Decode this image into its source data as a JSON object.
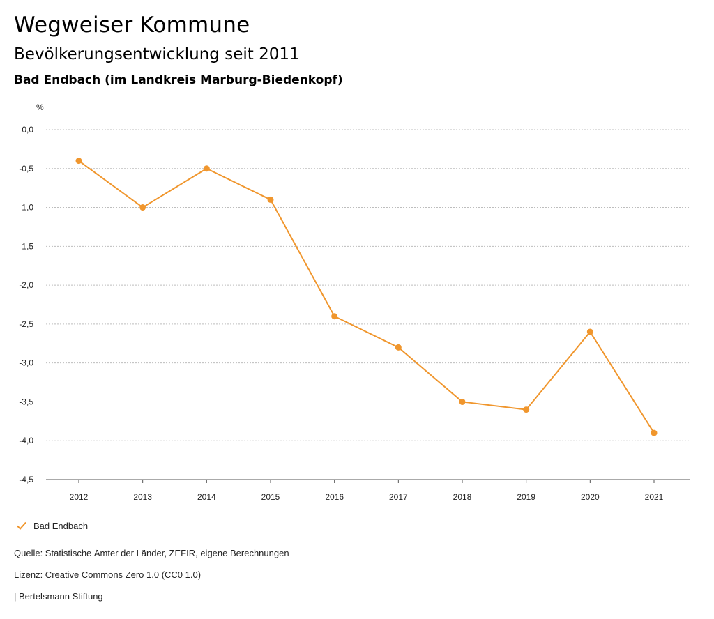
{
  "header": {
    "title": "Wegweiser Kommune",
    "subtitle": "Bevölkerungsentwicklung seit 2011",
    "region": "Bad Endbach (im Landkreis Marburg-Biedenkopf)"
  },
  "chart_data": {
    "type": "line",
    "title": "Bevölkerungsentwicklung seit 2011",
    "ylabel": "%",
    "xlabel": "",
    "ylim": [
      -4.5,
      0.0
    ],
    "yticks": [
      0.0,
      -0.5,
      -1.0,
      -1.5,
      -2.0,
      -2.5,
      -3.0,
      -3.5,
      -4.0,
      -4.5
    ],
    "ytick_labels": [
      "0,0",
      "-0,5",
      "-1,0",
      "-1,5",
      "-2,0",
      "-2,5",
      "-3,0",
      "-3,5",
      "-4,0",
      "-4,5"
    ],
    "categories": [
      "2012",
      "2013",
      "2014",
      "2015",
      "2016",
      "2017",
      "2018",
      "2019",
      "2020",
      "2021"
    ],
    "series": [
      {
        "name": "Bad Endbach",
        "color": "#f0962d",
        "values": [
          -0.4,
          -1.0,
          -0.5,
          -0.9,
          -2.4,
          -2.8,
          -3.5,
          -3.6,
          -2.6,
          -3.9
        ]
      }
    ],
    "grid": true,
    "legend": "bottom-left"
  },
  "legend": {
    "label": "Bad Endbach",
    "icon": "check-icon"
  },
  "footer": {
    "source": "Quelle: Statistische Ämter der Länder, ZEFIR, eigene Berechnungen",
    "license": "Lizenz: Creative Commons Zero 1.0 (CC0 1.0)",
    "brand": "| Bertelsmann Stiftung"
  }
}
